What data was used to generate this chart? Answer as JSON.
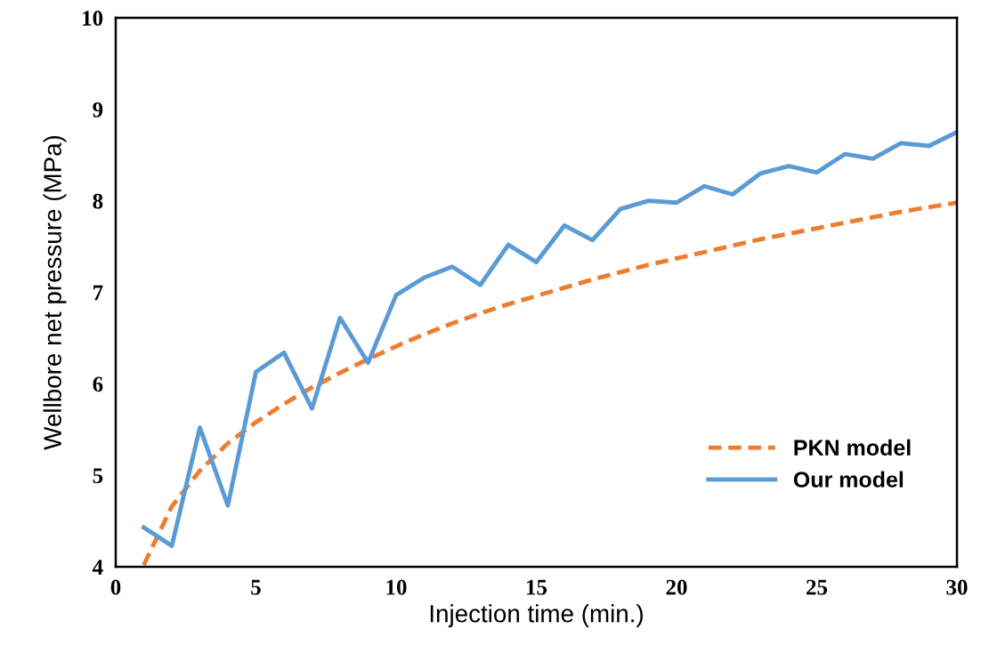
{
  "chart_data": {
    "type": "line",
    "xlabel": "Injection time (min.)",
    "ylabel": "Wellbore net pressure (MPa)",
    "x": [
      1,
      2,
      3,
      4,
      5,
      6,
      7,
      8,
      9,
      10,
      11,
      12,
      13,
      14,
      15,
      16,
      17,
      18,
      19,
      20,
      21,
      22,
      23,
      24,
      25,
      26,
      27,
      28,
      29,
      30
    ],
    "series": [
      {
        "name": "PKN model",
        "color": "#ed7d31",
        "line_style": "dashed",
        "values": [
          4.02,
          4.66,
          5.05,
          5.35,
          5.58,
          5.78,
          5.96,
          6.12,
          6.27,
          6.41,
          6.54,
          6.66,
          6.77,
          6.87,
          6.96,
          7.05,
          7.14,
          7.22,
          7.3,
          7.37,
          7.44,
          7.51,
          7.58,
          7.64,
          7.7,
          7.76,
          7.82,
          7.88,
          7.93,
          7.98
        ]
      },
      {
        "name": "Our model",
        "color": "#5b9bd5",
        "line_style": "solid",
        "values": [
          4.43,
          4.23,
          5.52,
          4.67,
          6.13,
          6.34,
          5.73,
          6.72,
          6.23,
          6.97,
          7.16,
          7.28,
          7.08,
          7.52,
          7.33,
          7.73,
          7.57,
          7.91,
          8.0,
          7.98,
          8.16,
          8.07,
          8.3,
          8.38,
          8.31,
          8.51,
          8.46,
          8.63,
          8.6,
          8.75
        ]
      }
    ],
    "xlim": [
      0,
      30
    ],
    "xticks": [
      0,
      5,
      10,
      15,
      20,
      25,
      30
    ],
    "ylim": [
      4,
      10
    ],
    "yticks": [
      4,
      5,
      6,
      7,
      8,
      9,
      10
    ],
    "grid": false,
    "legend": "bottom right",
    "marker": "none"
  }
}
